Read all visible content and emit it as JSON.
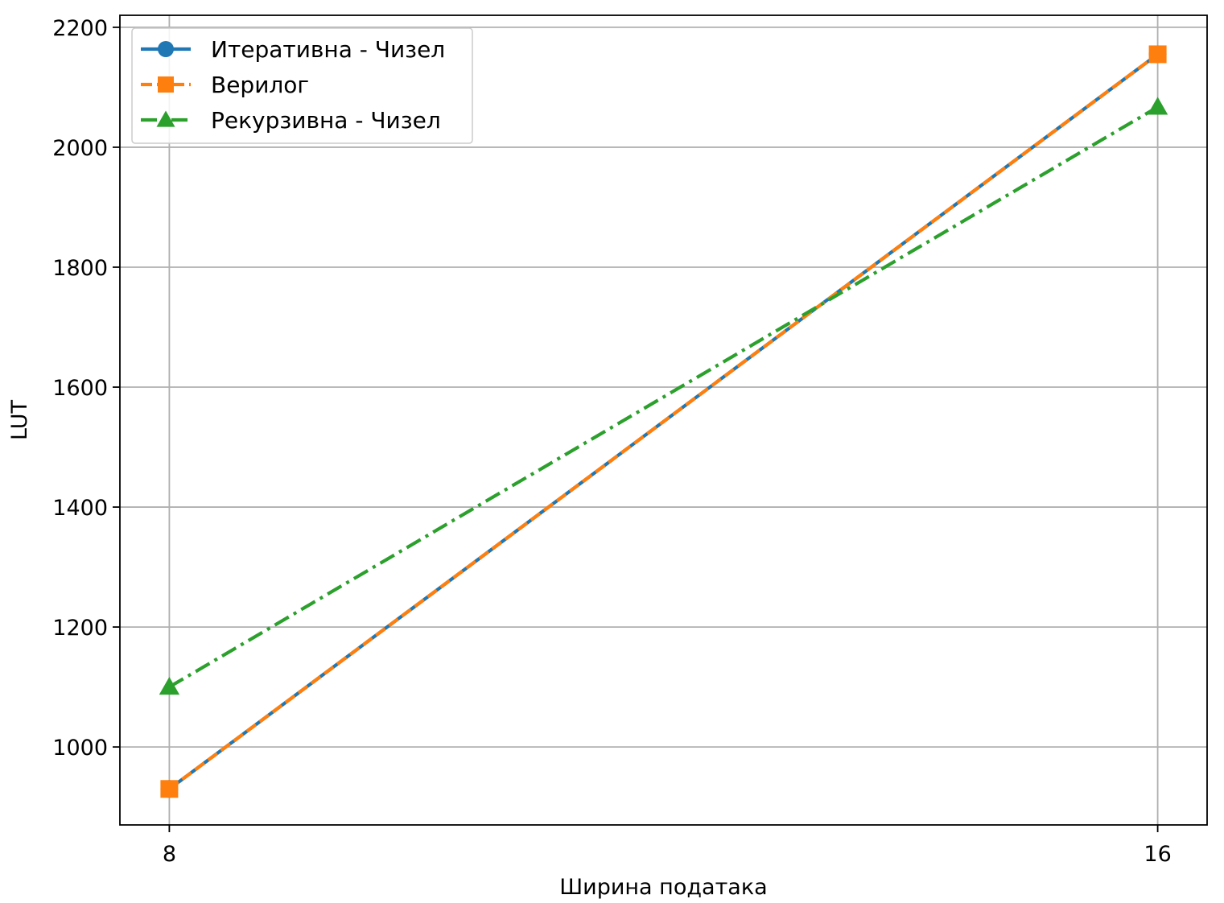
{
  "chart_data": {
    "type": "line",
    "title": "",
    "xlabel": "Ширина података",
    "ylabel": "LUT",
    "x": [
      8,
      16
    ],
    "x_ticks": [
      "8",
      "16"
    ],
    "xlim": [
      7.6,
      16.4
    ],
    "ylim": [
      870,
      2220
    ],
    "y_ticks": [
      1000,
      1200,
      1400,
      1600,
      1800,
      2000,
      2200
    ],
    "grid": true,
    "legend_position": "upper-left",
    "series": [
      {
        "name": "Итеративна - Чизел",
        "values": [
          930,
          2155
        ],
        "color": "#1f77b4",
        "line_style": "solid",
        "marker": "circle"
      },
      {
        "name": "Верилог",
        "values": [
          930,
          2155
        ],
        "color": "#ff7f0e",
        "line_style": "dashed",
        "marker": "square"
      },
      {
        "name": "Рекурзивна - Чизел",
        "values": [
          1100,
          2067
        ],
        "color": "#2ca02c",
        "line_style": "dashdot",
        "marker": "triangle"
      }
    ]
  }
}
